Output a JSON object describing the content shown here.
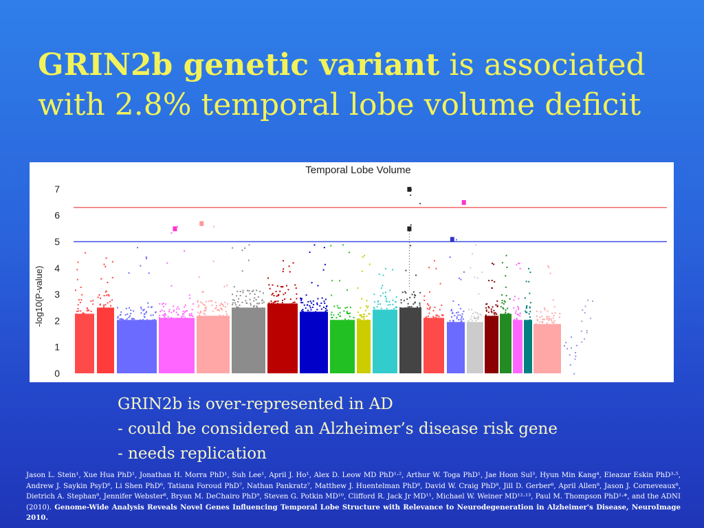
{
  "slide": {
    "title_bold": "GRIN2b genetic variant",
    "title_rest": " is associated with 2.8% temporal lobe volume deficit",
    "caption_lines": [
      "GRIN2b is over-represented in AD",
      "- could be considered an Alzheimer’s disease risk gene",
      "- needs replication"
    ],
    "citation_authors": "Jason L. Stein¹, Xue Hua PhD¹, Jonathan H. Morra PhD¹, Suh Lee¹, April J. Ho¹, Alex D. Leow MD PhD¹·², Arthur W. Toga PhD¹, Jae Hoon Sul³, Hyun Min Kang⁴, Eleazar Eskin PhD³·⁵, Andrew J. Saykin PsyD⁶, Li Shen PhD⁶, Tatiana Foroud PhD⁷, Nathan Pankratz⁷, Matthew J. Huentelman PhD⁸, David W. Craig PhD⁸, Jill D. Gerber⁸, April Allen⁸, Jason J. Corneveaux⁸, Dietrich A. Stephan⁸, Jennifer Webster⁸, Bryan M. DeChairo PhD⁹, Steven G. Potkin MD¹⁰, Clifford R. Jack Jr MD¹¹, Michael W. Weiner MD¹²·¹³, Paul M. Thompson PhD¹·*, and the ADNI (2010). ",
    "citation_title": "Genome-Wide Analysis Reveals Novel Genes Influencing Temporal Lobe Structure with Relevance to Neurodegeneration in Alzheimer's Disease, NeuroImage 2010."
  },
  "chart_data": {
    "type": "scatter",
    "subtype": "manhattan",
    "title": "Temporal Lobe Volume",
    "ylabel": "-log10(P-value)",
    "ylim": [
      0,
      7.3
    ],
    "yticks": [
      "0",
      "1",
      "2",
      "3",
      "4",
      "5",
      "6",
      "7"
    ],
    "thresholds": [
      {
        "value": 6.3,
        "color": "#f06a6a"
      },
      {
        "value": 5.0,
        "color": "#3a4fe0"
      }
    ],
    "columns": [
      {
        "color": "#ff4a4a",
        "bulk": 2.9,
        "peak": 4.6
      },
      {
        "color": "#ff3b3b",
        "bulk": 3.2,
        "peak": 4.4
      },
      {
        "color": "#6b6bff",
        "bulk": 2.6,
        "peak": 4.8
      },
      {
        "color": "#ff66ff",
        "bulk": 2.7,
        "peak": 5.6
      },
      {
        "color": "#ffa6a6",
        "bulk": 2.8,
        "peak": 5.6
      },
      {
        "color": "#8c8c8c",
        "bulk": 3.2,
        "peak": 4.9
      },
      {
        "color": "#bb0000",
        "bulk": 3.4,
        "peak": 4.3
      },
      {
        "color": "#0000c8",
        "bulk": 3.0,
        "peak": 4.9
      },
      {
        "color": "#22c022",
        "bulk": 2.6,
        "peak": 4.9
      },
      {
        "color": "#cccc00",
        "bulk": 2.6,
        "peak": 4.5
      },
      {
        "color": "#33cccc",
        "bulk": 3.1,
        "peak": 4.0
      },
      {
        "color": "#444444",
        "bulk": 3.2,
        "peak": 7.0
      },
      {
        "color": "#ff4a4a",
        "bulk": 2.7,
        "peak": 4.3
      },
      {
        "color": "#6b6bff",
        "bulk": 2.5,
        "peak": 5.1
      },
      {
        "color": "#cccccc",
        "bulk": 2.5,
        "peak": 4.9
      },
      {
        "color": "#8b0000",
        "bulk": 2.8,
        "peak": 4.2
      },
      {
        "color": "#228b22",
        "bulk": 2.9,
        "peak": 4.5
      },
      {
        "color": "#ff66ff",
        "bulk": 2.6,
        "peak": 4.2
      },
      {
        "color": "#008080",
        "bulk": 2.6,
        "peak": 4.0
      },
      {
        "color": "#ffa6a6",
        "bulk": 2.4,
        "peak": 4.1
      },
      {
        "color": "#8e8ee8",
        "bulk": 1.0,
        "peak": 1.4
      },
      {
        "color": "#a0a0d8",
        "bulk": 1.5,
        "peak": 2.8
      }
    ],
    "highlights": [
      {
        "column": 3,
        "value": 5.5,
        "color": "#ff33cc"
      },
      {
        "column": 4,
        "value": 5.7,
        "color": "#ff9999"
      },
      {
        "column": 11,
        "value": 7.0,
        "color": "#222222"
      },
      {
        "column": 11,
        "value": 5.5,
        "color": "#222222"
      },
      {
        "column": 13,
        "value": 5.1,
        "color": "#3333cc"
      },
      {
        "column": 13,
        "value": 6.5,
        "color": "#ff33cc"
      }
    ]
  }
}
